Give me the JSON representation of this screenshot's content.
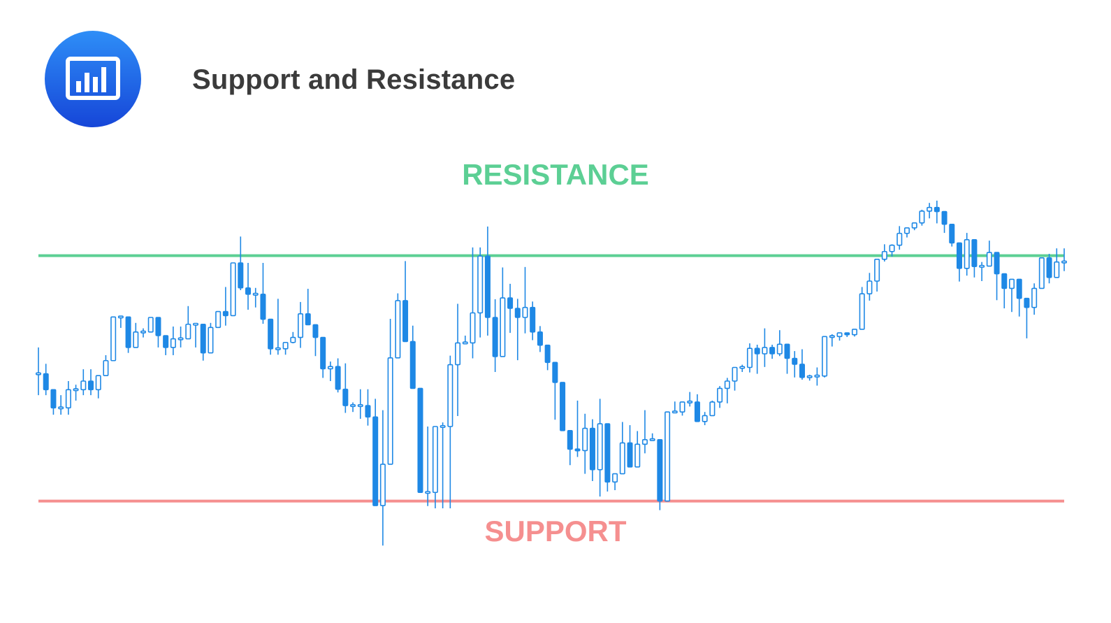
{
  "header": {
    "title": "Support and Resistance",
    "logo_icon": "bar-chart-icon"
  },
  "colors": {
    "logo_top": "#2e8ef7",
    "logo_bottom": "#1646d8",
    "title": "#3b3b3b",
    "candle": "#1e88e5",
    "resistance": "#5ccf94",
    "support": "#f58f8f"
  },
  "chart_data": {
    "type": "candlestick",
    "title": "Support and Resistance",
    "ylim": [
      0,
      100
    ],
    "grid": false,
    "resistance": {
      "label": "RESISTANCE",
      "level": 77.6
    },
    "support": {
      "label": "SUPPORT",
      "level": 23.6
    },
    "candles": [
      [
        51.6,
        51.6,
        57.4,
        46.9
      ],
      [
        51.6,
        48.1,
        53.8,
        46.9
      ],
      [
        48.1,
        44.1,
        48.1,
        42.6
      ],
      [
        44.1,
        44.1,
        46.9,
        42.6
      ],
      [
        44.1,
        48.1,
        50.0,
        42.6
      ],
      [
        48.1,
        48.1,
        49.2,
        45.7
      ],
      [
        48.1,
        50.0,
        52.6,
        46.9
      ],
      [
        50.0,
        48.1,
        52.6,
        46.9
      ],
      [
        48.1,
        51.2,
        51.2,
        46.2
      ],
      [
        51.2,
        54.5,
        55.7,
        51.2
      ],
      [
        54.5,
        64.1,
        64.1,
        54.5
      ],
      [
        64.1,
        64.1,
        64.1,
        61.7
      ],
      [
        64.1,
        57.4,
        64.1,
        56.2
      ],
      [
        57.4,
        60.8,
        62.8,
        57.4
      ],
      [
        60.8,
        60.8,
        61.6,
        59.6
      ],
      [
        60.8,
        64.0,
        64.0,
        60.8
      ],
      [
        64.0,
        60.0,
        64.0,
        57.4
      ],
      [
        60.0,
        57.4,
        60.0,
        55.7
      ],
      [
        57.4,
        59.3,
        62.0,
        55.7
      ],
      [
        59.3,
        59.3,
        62.0,
        57.4
      ],
      [
        59.3,
        62.5,
        66.5,
        59.3
      ],
      [
        62.5,
        62.5,
        62.5,
        57.4
      ],
      [
        62.5,
        56.2,
        62.5,
        54.5
      ],
      [
        56.2,
        61.8,
        62.8,
        56.2
      ],
      [
        61.8,
        65.3,
        65.3,
        61.8
      ],
      [
        65.3,
        64.4,
        70.7,
        62.2
      ],
      [
        64.4,
        76.0,
        76.0,
        64.4
      ],
      [
        76.0,
        70.5,
        81.8,
        70.0
      ],
      [
        70.5,
        69.1,
        76.0,
        65.7
      ],
      [
        69.1,
        69.1,
        70.5,
        66.2
      ],
      [
        69.1,
        63.6,
        76.0,
        62.6
      ],
      [
        63.6,
        57.1,
        63.6,
        55.8
      ],
      [
        57.1,
        57.1,
        68.1,
        55.8
      ],
      [
        57.1,
        58.5,
        58.5,
        55.8
      ],
      [
        58.5,
        59.6,
        60.8,
        58.3
      ],
      [
        59.6,
        64.8,
        67.4,
        57.3
      ],
      [
        64.8,
        62.4,
        70.3,
        62.4
      ],
      [
        62.4,
        59.6,
        61.4,
        55.5
      ],
      [
        59.6,
        52.7,
        59.6,
        50.7
      ],
      [
        52.7,
        53.2,
        54.3,
        50.0
      ],
      [
        53.2,
        48.2,
        55.0,
        47.5
      ],
      [
        48.2,
        44.6,
        53.9,
        43.0
      ],
      [
        44.6,
        44.6,
        45.3,
        43.2
      ],
      [
        44.6,
        44.6,
        48.2,
        41.7
      ],
      [
        44.6,
        42.1,
        48.2,
        40.2
      ],
      [
        42.1,
        22.6,
        46.1,
        22.6
      ],
      [
        22.6,
        31.7,
        43.6,
        13.8
      ],
      [
        31.7,
        55.1,
        63.7,
        31.7
      ],
      [
        55.1,
        67.7,
        69.3,
        55.1
      ],
      [
        67.7,
        58.7,
        76.4,
        58.7
      ],
      [
        58.7,
        48.4,
        62.2,
        48.4
      ],
      [
        48.4,
        25.5,
        48.4,
        25.5
      ],
      [
        25.5,
        25.5,
        40.0,
        22.5
      ],
      [
        25.5,
        40.0,
        40.0,
        22.0
      ],
      [
        40.0,
        40.0,
        40.9,
        22.0
      ],
      [
        40.0,
        53.6,
        55.6,
        22.0
      ],
      [
        53.6,
        58.4,
        67.0,
        42.3
      ],
      [
        58.4,
        58.4,
        60.0,
        58.4
      ],
      [
        58.4,
        65.0,
        79.4,
        55.0
      ],
      [
        65.0,
        77.5,
        79.4,
        59.6
      ],
      [
        77.5,
        64.0,
        84.0,
        60.0
      ],
      [
        64.0,
        55.4,
        68.0,
        52.0
      ],
      [
        55.4,
        68.3,
        75.0,
        55.4
      ],
      [
        68.3,
        66.0,
        71.4,
        60.6
      ],
      [
        66.0,
        64.0,
        68.1,
        54.6
      ],
      [
        64.0,
        66.2,
        75.1,
        60.5
      ],
      [
        66.2,
        60.8,
        67.5,
        59.0
      ],
      [
        60.8,
        57.9,
        62.1,
        56.4
      ],
      [
        57.9,
        54.1,
        56.6,
        52.4
      ],
      [
        54.1,
        49.7,
        49.7,
        41.5
      ],
      [
        49.7,
        39.1,
        46.7,
        39.1
      ],
      [
        39.1,
        35.0,
        39.1,
        31.5
      ],
      [
        35.0,
        34.7,
        45.7,
        33.3
      ],
      [
        34.7,
        39.6,
        42.8,
        29.6
      ],
      [
        39.6,
        30.5,
        41.6,
        28.0
      ],
      [
        30.5,
        40.6,
        46.1,
        24.6
      ],
      [
        40.6,
        27.8,
        38.5,
        25.7
      ],
      [
        27.8,
        29.6,
        29.6,
        26.0
      ],
      [
        29.6,
        36.4,
        41.0,
        29.6
      ],
      [
        36.4,
        31.1,
        40.3,
        31.1
      ],
      [
        31.1,
        36.1,
        39.0,
        31.1
      ],
      [
        36.1,
        37.1,
        43.6,
        34.1
      ],
      [
        37.1,
        37.1,
        38.5,
        37.1
      ],
      [
        37.1,
        23.6,
        37.1,
        21.6
      ],
      [
        23.6,
        43.2,
        43.2,
        37.5
      ],
      [
        43.2,
        43.2,
        45.5,
        43.2
      ],
      [
        43.2,
        45.4,
        45.5,
        42.4
      ],
      [
        45.4,
        45.4,
        47.6,
        44.4
      ],
      [
        45.4,
        41.1,
        47.1,
        41.1
      ],
      [
        41.1,
        42.4,
        43.2,
        40.3
      ],
      [
        42.4,
        45.4,
        45.7,
        42.4
      ],
      [
        45.4,
        48.4,
        48.9,
        44.1
      ],
      [
        48.4,
        50.0,
        50.7,
        45.1
      ],
      [
        50.0,
        53.0,
        53.0,
        47.9
      ],
      [
        53.0,
        53.0,
        53.6,
        52.0
      ],
      [
        53.0,
        57.2,
        58.3,
        51.9
      ],
      [
        57.2,
        56.0,
        58.0,
        51.6
      ],
      [
        56.0,
        57.4,
        61.6,
        53.1
      ],
      [
        57.4,
        56.0,
        58.0,
        54.9
      ],
      [
        56.0,
        58.1,
        61.2,
        55.5
      ],
      [
        58.1,
        55.0,
        58.1,
        51.6
      ],
      [
        55.0,
        53.7,
        56.6,
        50.8
      ],
      [
        53.7,
        50.8,
        57.0,
        50.3
      ],
      [
        50.8,
        51.1,
        51.4,
        50.1
      ],
      [
        51.1,
        51.1,
        53.0,
        49.0
      ],
      [
        51.1,
        59.8,
        59.8,
        50.8
      ],
      [
        59.8,
        59.8,
        60.3,
        57.6
      ],
      [
        59.8,
        60.6,
        60.6,
        58.9
      ],
      [
        60.6,
        60.2,
        60.6,
        59.7
      ],
      [
        60.2,
        61.4,
        61.4,
        59.8
      ],
      [
        61.4,
        69.2,
        70.7,
        61.4
      ],
      [
        69.2,
        72.0,
        73.8,
        67.7
      ],
      [
        72.0,
        76.8,
        76.8,
        69.7
      ],
      [
        76.8,
        78.5,
        80.1,
        76.3
      ],
      [
        78.5,
        79.9,
        80.1,
        77.4
      ],
      [
        79.9,
        82.5,
        84.1,
        78.9
      ],
      [
        82.5,
        83.7,
        83.7,
        81.6
      ],
      [
        83.7,
        84.8,
        84.8,
        83.2
      ],
      [
        84.8,
        87.4,
        87.7,
        84.2
      ],
      [
        87.4,
        88.2,
        89.2,
        85.8
      ],
      [
        88.2,
        87.3,
        89.7,
        84.7
      ],
      [
        87.3,
        84.5,
        86.7,
        82.6
      ],
      [
        84.5,
        80.4,
        84.5,
        79.6
      ],
      [
        80.4,
        74.8,
        80.4,
        71.9
      ],
      [
        74.8,
        81.1,
        82.6,
        73.2
      ],
      [
        81.1,
        75.2,
        81.1,
        72.8
      ],
      [
        75.2,
        75.3,
        76.2,
        72.0
      ],
      [
        75.3,
        78.3,
        80.9,
        75.3
      ],
      [
        78.3,
        73.6,
        73.6,
        67.8
      ],
      [
        73.6,
        70.4,
        73.6,
        66.0
      ],
      [
        70.4,
        72.4,
        72.4,
        65.2
      ],
      [
        72.4,
        68.2,
        72.4,
        64.2
      ],
      [
        68.2,
        66.2,
        67.8,
        59.4
      ],
      [
        66.2,
        70.4,
        71.5,
        64.6
      ],
      [
        70.4,
        77.1,
        77.1,
        70.4
      ],
      [
        77.1,
        72.8,
        78.0,
        71.5
      ],
      [
        72.8,
        76.2,
        79.2,
        72.8
      ],
      [
        76.2,
        76.2,
        79.2,
        74.2
      ]
    ]
  }
}
